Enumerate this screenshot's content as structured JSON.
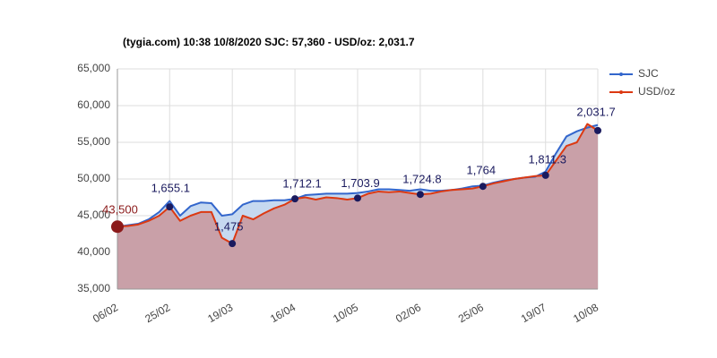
{
  "chart_data": {
    "type": "line",
    "title": "(tygia.com) 10:38 10/8/2020    SJC: 57,360 -  USD/oz: 2,031.7",
    "x": [
      "06/02",
      null,
      null,
      null,
      null,
      "25/02",
      null,
      null,
      null,
      null,
      null,
      "19/03",
      null,
      null,
      null,
      null,
      null,
      "16/04",
      null,
      null,
      null,
      null,
      null,
      "10/05",
      null,
      null,
      null,
      null,
      null,
      "02/06",
      null,
      null,
      null,
      null,
      null,
      "25/06",
      null,
      null,
      null,
      null,
      null,
      "19/07",
      null,
      null,
      null,
      null,
      "10/08"
    ],
    "series": [
      {
        "name": "SJC",
        "color": "#3366cc",
        "fill": "#c6d9f0",
        "values": [
          43500,
          43700,
          43900,
          44500,
          45500,
          47000,
          45000,
          46300,
          46800,
          46700,
          45000,
          45200,
          46500,
          47000,
          47000,
          47100,
          47100,
          47300,
          47800,
          47900,
          48000,
          48000,
          48000,
          48100,
          48300,
          48600,
          48600,
          48500,
          48400,
          48600,
          48400,
          48400,
          48500,
          48700,
          49000,
          49100,
          49500,
          49800,
          50000,
          50200,
          50300,
          51000,
          53500,
          55800,
          56500,
          57000,
          57360
        ]
      },
      {
        "name": "USD/oz",
        "color": "#dc3912",
        "fill": "#c9a0a8",
        "values": [
          43500,
          43600,
          43800,
          44300,
          45000,
          46200,
          44300,
          45000,
          45500,
          45500,
          42000,
          41200,
          45000,
          44500,
          45300,
          46000,
          46500,
          47300,
          47500,
          47200,
          47500,
          47400,
          47200,
          47400,
          48000,
          48300,
          48200,
          48300,
          48100,
          47900,
          48000,
          48300,
          48500,
          48600,
          48700,
          49000,
          49400,
          49700,
          50000,
          50200,
          50400,
          50500,
          52500,
          54500,
          55000,
          57500,
          56600
        ]
      }
    ],
    "annotations": [
      "43,500",
      "1,655.1",
      "1,475",
      "1,712.1",
      "1,703.9",
      "1,724.8",
      "1,764",
      "1,811.3",
      "2,031.7"
    ],
    "ylim": [
      35000,
      65000
    ],
    "yticks": [
      {
        "value": 35000,
        "label": "35,000"
      },
      {
        "value": 40000,
        "label": "40,000"
      },
      {
        "value": 45000,
        "label": "45,000"
      },
      {
        "value": 50000,
        "label": "50,000"
      },
      {
        "value": 55000,
        "label": "55,000"
      },
      {
        "value": 60000,
        "label": "60,000"
      },
      {
        "value": 65000,
        "label": "65,000"
      }
    ],
    "grid": true,
    "legend": "right"
  }
}
